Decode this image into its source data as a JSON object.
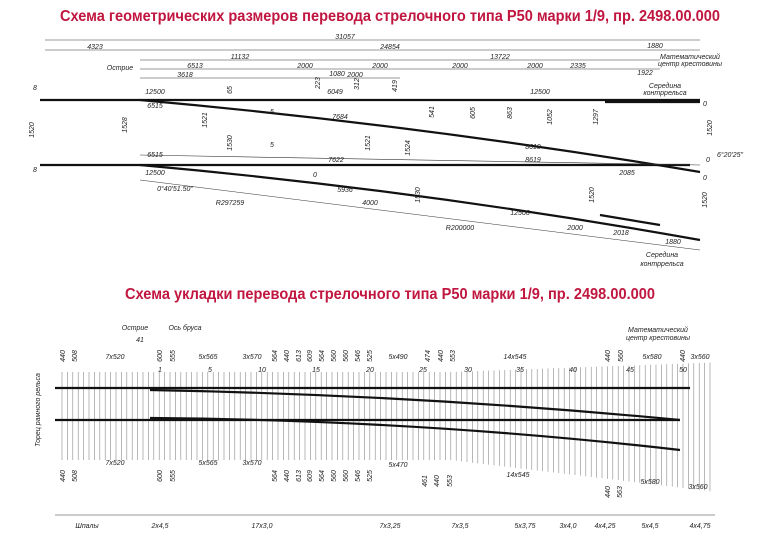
{
  "title_top": "Схема геометрических размеров перевода стрелочного типа Р50 марки 1/9, пр. 2498.00.000",
  "title_bottom": "Схема укладки перевода стрелочного типа Р50 марки 1/9, пр. 2498.00.000",
  "top_labels": [
    "31057",
    "4323",
    "24854",
    "1880",
    "11132",
    "13722",
    "6513",
    "2000",
    "2000",
    "2000",
    "2000",
    "2335",
    "1922",
    "Острие",
    "3618",
    "1080",
    "223",
    "2000",
    "312",
    "419",
    "Математический",
    "центр крестовины",
    "Середина",
    "контррельса",
    "8",
    "12500",
    "6515",
    "65",
    "6049",
    "12500",
    "0",
    "1520",
    "1528",
    "1521",
    "5",
    "7684",
    "541",
    "605",
    "863",
    "1052",
    "1297",
    "1520",
    "1530",
    "5",
    "1521",
    "1524",
    "8619",
    "8619",
    "6515",
    "7622",
    "6°20'25\"",
    "12500",
    "0",
    "2085",
    "0",
    "0",
    "0°40'51.50\"",
    "5936",
    "4000",
    "1530",
    "1520",
    "1520",
    "R297259",
    "12500",
    "2000",
    "R200000",
    "2018",
    "1880",
    "Середина",
    "контррельса",
    "8"
  ],
  "bottom_labels": [
    "Острие",
    "Ось бруса",
    "41",
    "Математический",
    "центр крестовины",
    "440",
    "508",
    "7x520",
    "600",
    "555",
    "5x565",
    "3x570",
    "564",
    "440",
    "613",
    "609",
    "564",
    "560",
    "560",
    "546",
    "525",
    "5x490",
    "474",
    "440",
    "553",
    "14x545",
    "440",
    "560",
    "5x580",
    "440",
    "3x560",
    "1",
    "5",
    "10",
    "15",
    "20",
    "25",
    "30",
    "35",
    "40",
    "45",
    "50",
    "Торец рамного рельса",
    "440",
    "508",
    "7x520",
    "600",
    "555",
    "5x565",
    "3x570",
    "564",
    "440",
    "613",
    "609",
    "564",
    "560",
    "560",
    "546",
    "525",
    "5x470",
    "461",
    "440",
    "553",
    "14x545",
    "440",
    "563",
    "5x580",
    "3x560"
  ],
  "sections": [
    "Шпалы",
    "2x4,5",
    "17x3,0",
    "7x3,25",
    "7x3,5",
    "5x3,75",
    "3x4,0",
    "4x4,25",
    "5x4,5",
    "4x4,75"
  ]
}
